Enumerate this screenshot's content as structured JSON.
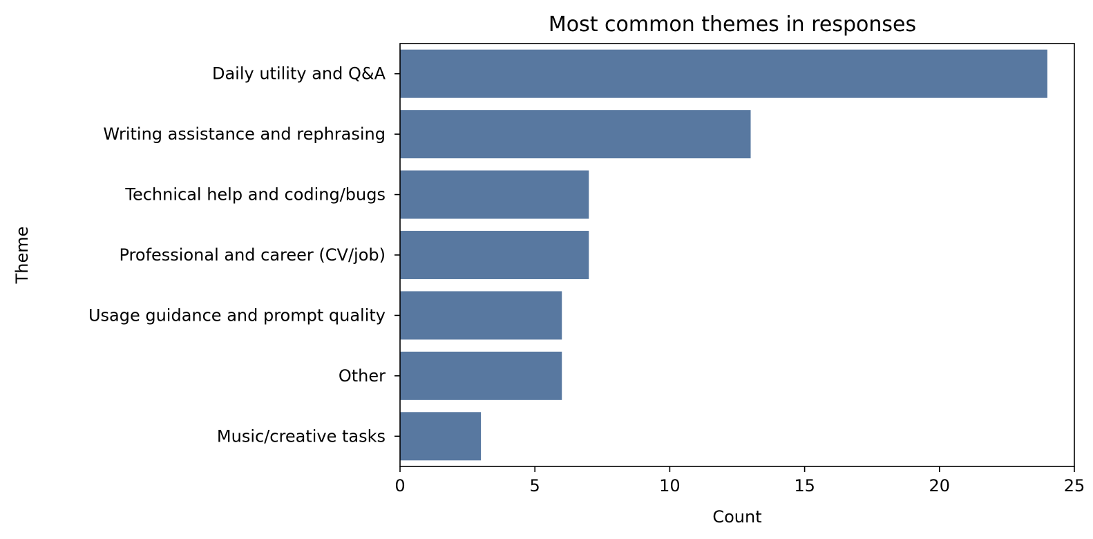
{
  "chart_data": {
    "type": "bar",
    "orientation": "horizontal",
    "title": "Most common themes in responses",
    "xlabel": "Count",
    "ylabel": "Theme",
    "categories": [
      "Daily utility and Q&A",
      "Writing assistance and rephrasing",
      "Technical help and coding/bugs",
      "Professional and career (CV/job)",
      "Usage guidance and prompt quality",
      "Other",
      "Music/creative tasks"
    ],
    "values": [
      24,
      13,
      7,
      7,
      6,
      6,
      3
    ],
    "xlim": [
      0,
      25
    ],
    "xticks": [
      0,
      5,
      10,
      15,
      20,
      25
    ],
    "grid": false,
    "legend": "none",
    "bar_color": "#5878a0"
  }
}
